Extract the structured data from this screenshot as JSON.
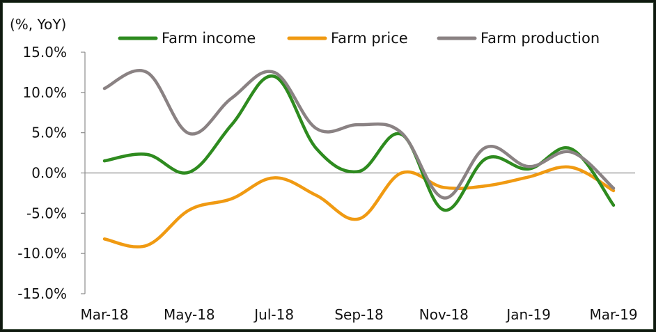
{
  "chart_data": {
    "type": "line",
    "title": "",
    "unit_label": "(%, YoY)",
    "xlabel": "",
    "ylabel": "",
    "x": [
      "Mar-18",
      "Apr-18",
      "May-18",
      "Jun-18",
      "Jul-18",
      "Aug-18",
      "Sep-18",
      "Oct-18",
      "Nov-18",
      "Dec-18",
      "Jan-19",
      "Feb-19",
      "Mar-19"
    ],
    "x_tick_labels": [
      "Mar-18",
      "May-18",
      "Jul-18",
      "Sep-18",
      "Nov-18",
      "Jan-19",
      "Mar-19"
    ],
    "y_tick_labels": [
      "15.0%",
      "10.0%",
      "5.0%",
      "0.0%",
      "-5.0%",
      "-10.0%",
      "-15.0%"
    ],
    "ylim": [
      -15,
      15
    ],
    "grid": false,
    "legend_position": "top",
    "series": [
      {
        "name": "Farm income",
        "color": "#2e8b1f",
        "values": [
          1.5,
          2.3,
          0.1,
          6.0,
          12.0,
          3.0,
          0.2,
          4.8,
          -4.6,
          1.8,
          0.5,
          3.0,
          -4.0
        ]
      },
      {
        "name": "Farm price",
        "color": "#f09a12",
        "values": [
          -8.2,
          -9.0,
          -4.6,
          -3.2,
          -0.6,
          -2.8,
          -5.7,
          0.0,
          -1.8,
          -1.6,
          -0.5,
          0.7,
          -2.2
        ]
      },
      {
        "name": "Farm production",
        "color": "#8a8283",
        "values": [
          10.5,
          12.5,
          4.9,
          9.3,
          12.5,
          5.5,
          6.0,
          5.0,
          -3.1,
          3.2,
          0.8,
          2.6,
          -1.9
        ]
      }
    ]
  }
}
